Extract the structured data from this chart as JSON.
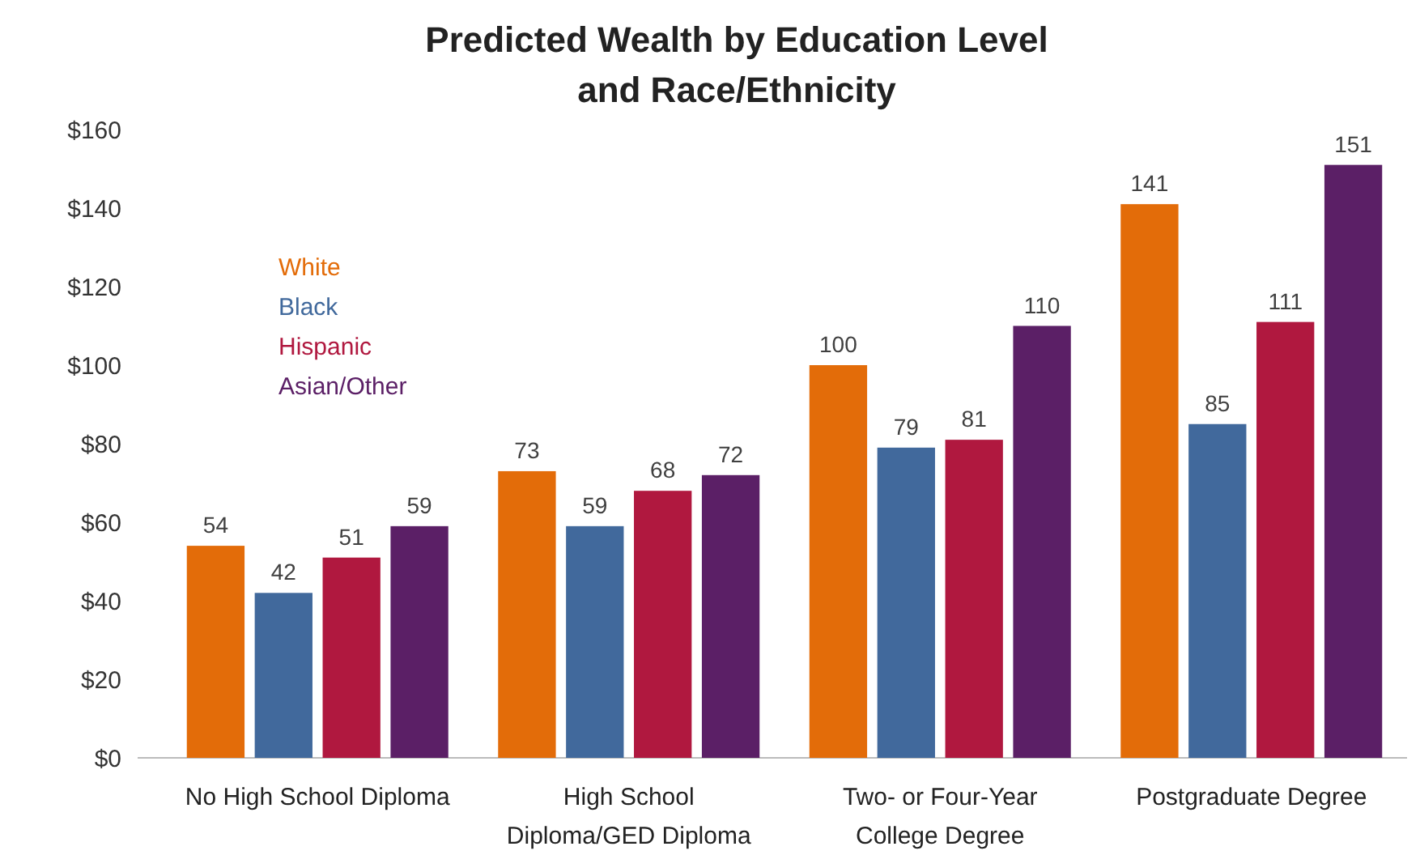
{
  "chart_data": {
    "type": "bar",
    "title": "Predicted Wealth by Education Level\nand Race/Ethnicity",
    "categories": [
      "No High School Diploma",
      "High School\nDiploma/GED Diploma",
      "Two- or Four-Year\nCollege Degree",
      "Postgraduate Degree"
    ],
    "series": [
      {
        "name": "White",
        "color": "#e36c09",
        "values": [
          54,
          73,
          100,
          141
        ]
      },
      {
        "name": "Black",
        "color": "#41699c",
        "values": [
          42,
          59,
          79,
          85
        ]
      },
      {
        "name": "Hispanic",
        "color": "#b0183f",
        "values": [
          51,
          68,
          81,
          111
        ]
      },
      {
        "name": "Asian/Other",
        "color": "#5b1f66",
        "values": [
          59,
          72,
          110,
          151
        ]
      }
    ],
    "ylim": [
      0,
      160
    ],
    "yticks": [
      {
        "value": 0,
        "label": "$0"
      },
      {
        "value": 20,
        "label": "$20"
      },
      {
        "value": 40,
        "label": "$40"
      },
      {
        "value": 60,
        "label": "$60"
      },
      {
        "value": 80,
        "label": "$80"
      },
      {
        "value": 100,
        "label": "$100"
      },
      {
        "value": 120,
        "label": "$120"
      },
      {
        "value": 140,
        "label": "$140"
      },
      {
        "value": 160,
        "label": "$160"
      }
    ],
    "data_labels": true,
    "legend": "top left",
    "grid": false
  }
}
